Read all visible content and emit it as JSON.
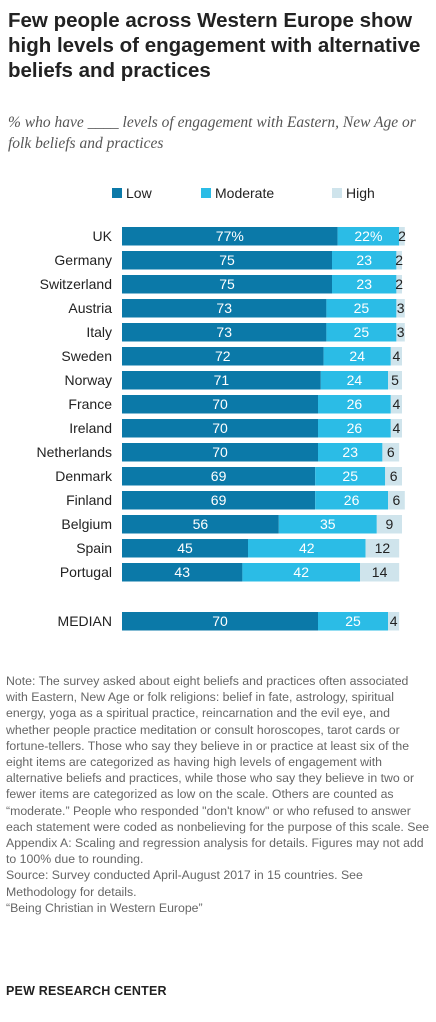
{
  "title": "Few people across Western Europe show high levels of engagement with alternative beliefs and practices",
  "subtitle": "% who have ____ levels of engagement with Eastern, New Age or folk beliefs and practices",
  "colors": {
    "low": "#0b79a8",
    "moderate": "#2bbce6",
    "high": "#cfe4ec"
  },
  "chart_data": {
    "type": "bar",
    "orientation": "horizontal",
    "stacked": true,
    "legend_position": "top",
    "categories": [
      "UK",
      "Germany",
      "Switzerland",
      "Austria",
      "Italy",
      "Sweden",
      "Norway",
      "France",
      "Ireland",
      "Netherlands",
      "Denmark",
      "Finland",
      "Belgium",
      "Spain",
      "Portugal",
      "MEDIAN"
    ],
    "series": [
      {
        "name": "Low",
        "values": [
          77,
          75,
          75,
          73,
          73,
          72,
          71,
          70,
          70,
          70,
          69,
          69,
          56,
          45,
          43,
          70
        ],
        "labels": [
          "77%",
          "75",
          "75",
          "73",
          "73",
          "72",
          "71",
          "70",
          "70",
          "70",
          "69",
          "69",
          "56",
          "45",
          "43",
          "70"
        ]
      },
      {
        "name": "Moderate",
        "values": [
          22,
          23,
          23,
          25,
          25,
          24,
          24,
          26,
          26,
          23,
          25,
          26,
          35,
          42,
          42,
          25
        ],
        "labels": [
          "22%",
          "23",
          "23",
          "25",
          "25",
          "24",
          "24",
          "26",
          "26",
          "23",
          "25",
          "26",
          "35",
          "42",
          "42",
          "25"
        ]
      },
      {
        "name": "High",
        "values": [
          2,
          2,
          2,
          3,
          3,
          4,
          5,
          4,
          4,
          6,
          6,
          6,
          9,
          12,
          14,
          4
        ],
        "labels": [
          "2",
          "2",
          "2",
          "3",
          "3",
          "4",
          "5",
          "4",
          "4",
          "6",
          "6",
          "6",
          "9",
          "12",
          "14",
          "4"
        ]
      }
    ],
    "xlim": [
      0,
      100
    ]
  },
  "notes": [
    "Note: The survey asked about eight beliefs and practices often associated with Eastern, New Age or folk religions: belief in fate, astrology, spiritual energy, yoga as a spiritual practice, reincarnation and the evil eye, and whether people practice meditation or consult horoscopes, tarot cards or fortune-tellers. Those who say they believe in or practice at least six of the eight items are categorized as having high levels of engagement with alternative beliefs and practices, while those who say they believe in two or fewer items are categorized as low on the scale. Others are counted as “moderate.” People who responded \"don't know\" or who refused to answer each statement were coded as nonbelieving for the purpose of this scale. See Appendix A: Scaling and regression analysis for details. Figures may not add to 100% due to rounding.",
    "Source: Survey conducted April-August 2017 in 15 countries. See Methodology for details.",
    "“Being Christian in Western Europe”"
  ],
  "logo": "PEW RESEARCH CENTER"
}
